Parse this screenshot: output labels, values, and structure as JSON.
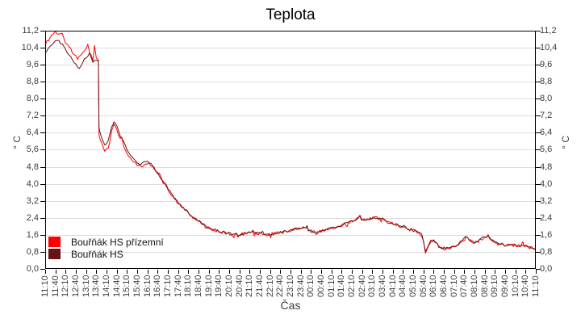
{
  "chart_data": {
    "type": "line",
    "title": "Teplota",
    "xlabel": "Čas",
    "ylabel_left": "° C",
    "ylabel_right": "° C",
    "ylim": [
      0,
      11.2
    ],
    "ytick_step": 0.8,
    "decimal_separator": ",",
    "grid": "horizontal",
    "legend_position": "inside-bottom-left",
    "x_categories": [
      "11:10",
      "11:40",
      "12:10",
      "12:40",
      "13:10",
      "13:40",
      "14:10",
      "14:40",
      "15:10",
      "15:40",
      "16:10",
      "16:40",
      "17:10",
      "17:40",
      "18:10",
      "18:40",
      "19:10",
      "19:40",
      "20:10",
      "20:40",
      "21:10",
      "21:40",
      "22:10",
      "22:40",
      "23:10",
      "23:40",
      "00:10",
      "00:40",
      "01:10",
      "01:40",
      "02:10",
      "02:40",
      "03:10",
      "03:40",
      "04:10",
      "04:40",
      "05:10",
      "05:40",
      "06:10",
      "06:40",
      "07:10",
      "07:40",
      "08:10",
      "08:40",
      "09:10",
      "09:40",
      "10:10",
      "10:40",
      "11:10"
    ],
    "series": [
      {
        "name": "Bouřňák HS přízemní",
        "color": "#ff0000",
        "noise_amplitude": 0.08,
        "points": [
          [
            "11:10",
            10.5
          ],
          [
            "11:20",
            10.8
          ],
          [
            "11:30",
            11.0
          ],
          [
            "11:40",
            11.15
          ],
          [
            "11:50",
            11.0
          ],
          [
            "12:00",
            11.05
          ],
          [
            "12:10",
            10.55
          ],
          [
            "12:20",
            10.45
          ],
          [
            "12:30",
            10.15
          ],
          [
            "12:40",
            10.05
          ],
          [
            "12:50",
            9.95
          ],
          [
            "13:00",
            10.1
          ],
          [
            "13:10",
            10.35
          ],
          [
            "13:15",
            10.6
          ],
          [
            "13:20",
            10.15
          ],
          [
            "13:30",
            9.85
          ],
          [
            "13:35",
            10.45
          ],
          [
            "13:40",
            9.9
          ],
          [
            "13:46",
            9.85
          ],
          [
            "13:48",
            6.3
          ],
          [
            "13:55",
            5.9
          ],
          [
            "14:05",
            5.6
          ],
          [
            "14:15",
            5.75
          ],
          [
            "14:25",
            6.5
          ],
          [
            "14:32",
            6.85
          ],
          [
            "14:40",
            6.55
          ],
          [
            "14:50",
            6.1
          ],
          [
            "15:00",
            5.85
          ],
          [
            "15:10",
            5.45
          ],
          [
            "15:20",
            5.2
          ],
          [
            "15:30",
            5.05
          ],
          [
            "15:40",
            4.85
          ],
          [
            "15:50",
            4.8
          ],
          [
            "16:00",
            4.9
          ],
          [
            "16:10",
            5.0
          ],
          [
            "16:20",
            4.88
          ],
          [
            "16:30",
            4.68
          ],
          [
            "16:40",
            4.45
          ],
          [
            "17:00",
            4.0
          ],
          [
            "17:20",
            3.5
          ],
          [
            "17:40",
            3.1
          ],
          [
            "18:00",
            2.78
          ],
          [
            "18:20",
            2.48
          ],
          [
            "18:40",
            2.25
          ],
          [
            "19:00",
            2.0
          ],
          [
            "19:20",
            1.85
          ],
          [
            "19:40",
            1.75
          ],
          [
            "20:00",
            1.7
          ],
          [
            "20:20",
            1.63
          ],
          [
            "20:40",
            1.6
          ],
          [
            "21:00",
            1.68
          ],
          [
            "21:20",
            1.7
          ],
          [
            "21:40",
            1.66
          ],
          [
            "22:00",
            1.6
          ],
          [
            "22:20",
            1.65
          ],
          [
            "22:40",
            1.7
          ],
          [
            "23:00",
            1.78
          ],
          [
            "23:20",
            1.85
          ],
          [
            "23:40",
            1.9
          ],
          [
            "23:55",
            1.95
          ],
          [
            "00:10",
            1.8
          ],
          [
            "00:25",
            1.7
          ],
          [
            "00:40",
            1.76
          ],
          [
            "01:00",
            1.85
          ],
          [
            "01:20",
            1.95
          ],
          [
            "01:40",
            2.05
          ],
          [
            "02:00",
            2.2
          ],
          [
            "02:20",
            2.26
          ],
          [
            "02:34",
            2.45
          ],
          [
            "02:38",
            2.28
          ],
          [
            "03:00",
            2.35
          ],
          [
            "03:20",
            2.4
          ],
          [
            "03:40",
            2.36
          ],
          [
            "03:50",
            2.2
          ],
          [
            "04:00",
            2.15
          ],
          [
            "04:20",
            2.1
          ],
          [
            "04:40",
            1.95
          ],
          [
            "05:00",
            1.85
          ],
          [
            "05:20",
            1.76
          ],
          [
            "05:35",
            1.6
          ],
          [
            "05:40",
            1.3
          ],
          [
            "05:46",
            0.78
          ],
          [
            "05:52",
            0.95
          ],
          [
            "06:02",
            1.3
          ],
          [
            "06:10",
            1.35
          ],
          [
            "06:20",
            1.15
          ],
          [
            "06:30",
            1.0
          ],
          [
            "06:45",
            0.95
          ],
          [
            "07:00",
            1.0
          ],
          [
            "07:15",
            1.02
          ],
          [
            "07:30",
            1.25
          ],
          [
            "07:45",
            1.48
          ],
          [
            "07:55",
            1.35
          ],
          [
            "08:10",
            1.2
          ],
          [
            "08:25",
            1.35
          ],
          [
            "08:40",
            1.5
          ],
          [
            "08:50",
            1.55
          ],
          [
            "09:00",
            1.35
          ],
          [
            "09:15",
            1.2
          ],
          [
            "09:30",
            1.15
          ],
          [
            "09:45",
            1.1
          ],
          [
            "10:00",
            1.12
          ],
          [
            "10:20",
            1.1
          ],
          [
            "10:40",
            1.07
          ],
          [
            "11:00",
            1.0
          ],
          [
            "11:10",
            0.92
          ]
        ]
      },
      {
        "name": "Bouřňák HS",
        "color": "#6b1010",
        "noise_amplitude": 0.05,
        "points": [
          [
            "11:10",
            10.15
          ],
          [
            "11:20",
            10.4
          ],
          [
            "11:30",
            10.55
          ],
          [
            "11:40",
            10.7
          ],
          [
            "11:50",
            10.72
          ],
          [
            "12:00",
            10.55
          ],
          [
            "12:10",
            10.3
          ],
          [
            "12:20",
            10.1
          ],
          [
            "12:30",
            9.8
          ],
          [
            "12:40",
            9.6
          ],
          [
            "12:50",
            9.45
          ],
          [
            "13:00",
            9.7
          ],
          [
            "13:10",
            9.9
          ],
          [
            "13:20",
            10.1
          ],
          [
            "13:30",
            9.75
          ],
          [
            "13:40",
            9.85
          ],
          [
            "13:46",
            9.8
          ],
          [
            "13:48",
            6.6
          ],
          [
            "13:55",
            6.2
          ],
          [
            "14:05",
            5.85
          ],
          [
            "14:15",
            6.0
          ],
          [
            "14:25",
            6.65
          ],
          [
            "14:32",
            6.95
          ],
          [
            "14:40",
            6.7
          ],
          [
            "14:50",
            6.25
          ],
          [
            "15:00",
            6.0
          ],
          [
            "15:10",
            5.6
          ],
          [
            "15:20",
            5.32
          ],
          [
            "15:30",
            5.15
          ],
          [
            "15:40",
            4.95
          ],
          [
            "15:50",
            4.88
          ],
          [
            "16:00",
            5.0
          ],
          [
            "16:10",
            5.08
          ],
          [
            "16:20",
            4.95
          ],
          [
            "16:30",
            4.72
          ],
          [
            "16:40",
            4.5
          ],
          [
            "17:00",
            4.05
          ],
          [
            "17:20",
            3.55
          ],
          [
            "17:40",
            3.12
          ],
          [
            "18:00",
            2.8
          ],
          [
            "18:20",
            2.5
          ],
          [
            "18:40",
            2.27
          ],
          [
            "19:00",
            2.02
          ],
          [
            "19:20",
            1.87
          ],
          [
            "19:40",
            1.77
          ],
          [
            "20:00",
            1.71
          ],
          [
            "20:20",
            1.64
          ],
          [
            "20:40",
            1.61
          ],
          [
            "21:00",
            1.69
          ],
          [
            "21:20",
            1.71
          ],
          [
            "21:40",
            1.67
          ],
          [
            "22:00",
            1.61
          ],
          [
            "22:20",
            1.66
          ],
          [
            "22:40",
            1.71
          ],
          [
            "23:00",
            1.79
          ],
          [
            "23:20",
            1.86
          ],
          [
            "23:40",
            1.91
          ],
          [
            "23:55",
            1.96
          ],
          [
            "00:10",
            1.81
          ],
          [
            "00:25",
            1.71
          ],
          [
            "00:40",
            1.77
          ],
          [
            "01:00",
            1.86
          ],
          [
            "01:20",
            1.96
          ],
          [
            "01:40",
            2.06
          ],
          [
            "02:00",
            2.21
          ],
          [
            "02:20",
            2.27
          ],
          [
            "02:34",
            2.42
          ],
          [
            "02:38",
            2.29
          ],
          [
            "03:00",
            2.36
          ],
          [
            "03:20",
            2.41
          ],
          [
            "03:40",
            2.37
          ],
          [
            "03:50",
            2.21
          ],
          [
            "04:00",
            2.16
          ],
          [
            "04:20",
            2.11
          ],
          [
            "04:40",
            1.96
          ],
          [
            "05:00",
            1.86
          ],
          [
            "05:20",
            1.77
          ],
          [
            "05:35",
            1.61
          ],
          [
            "05:40",
            1.32
          ],
          [
            "05:46",
            0.8
          ],
          [
            "05:52",
            0.97
          ],
          [
            "06:02",
            1.32
          ],
          [
            "06:10",
            1.36
          ],
          [
            "06:20",
            1.16
          ],
          [
            "06:30",
            1.02
          ],
          [
            "06:45",
            0.97
          ],
          [
            "07:00",
            1.01
          ],
          [
            "07:15",
            1.03
          ],
          [
            "07:30",
            1.26
          ],
          [
            "07:45",
            1.5
          ],
          [
            "07:55",
            1.36
          ],
          [
            "08:10",
            1.22
          ],
          [
            "08:25",
            1.36
          ],
          [
            "08:40",
            1.51
          ],
          [
            "08:50",
            1.56
          ],
          [
            "09:00",
            1.36
          ],
          [
            "09:15",
            1.22
          ],
          [
            "09:30",
            1.16
          ],
          [
            "09:45",
            1.11
          ],
          [
            "10:00",
            1.13
          ],
          [
            "10:20",
            1.11
          ],
          [
            "10:40",
            1.08
          ],
          [
            "11:00",
            1.01
          ],
          [
            "11:10",
            0.95
          ]
        ]
      }
    ]
  }
}
